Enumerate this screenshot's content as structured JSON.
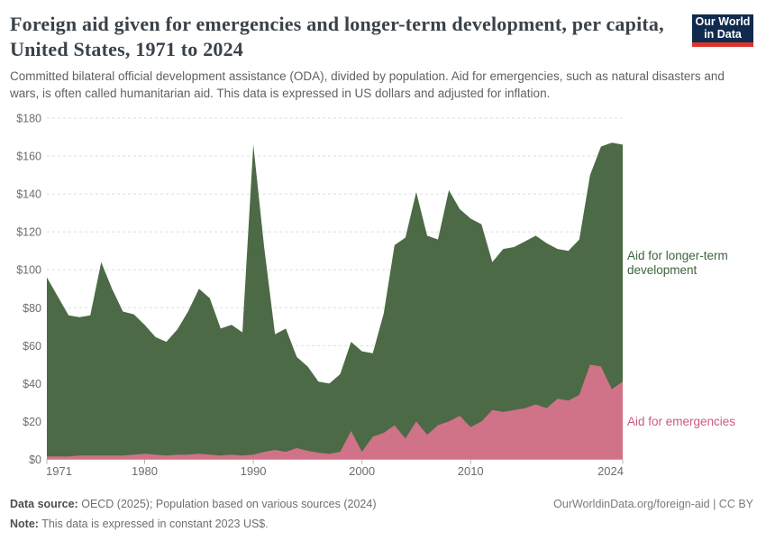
{
  "header": {
    "title": "Foreign aid given for emergencies and longer-term development, per capita, United States, 1971 to 2024",
    "subtitle": "Committed bilateral official development assistance (ODA), divided by population. Aid for emergencies, such as natural disasters and wars, is often called humanitarian aid. This data is expressed in US dollars and adjusted for inflation.",
    "logo": {
      "line1": "Our World",
      "line2": "in Data",
      "bg_color": "#102b4e",
      "accent_color": "#dc352d"
    }
  },
  "chart_data": {
    "type": "area",
    "stacked": true,
    "title": "Foreign aid given for emergencies and longer-term development, per capita, United States, 1971 to 2024",
    "xlabel": "",
    "ylabel": "",
    "grid": "horizontal-dashed",
    "legend_position": "right-edge-labels",
    "ylim": [
      0,
      180
    ],
    "yticks": [
      0,
      20,
      40,
      60,
      80,
      100,
      120,
      140,
      160,
      180
    ],
    "ytick_prefix": "$",
    "xticks": [
      1971,
      1980,
      1990,
      2000,
      2010,
      2024
    ],
    "x": [
      1971,
      1972,
      1973,
      1974,
      1975,
      1976,
      1977,
      1978,
      1979,
      1980,
      1981,
      1982,
      1983,
      1984,
      1985,
      1986,
      1987,
      1988,
      1989,
      1990,
      1991,
      1992,
      1993,
      1994,
      1995,
      1996,
      1997,
      1998,
      1999,
      2000,
      2001,
      2002,
      2003,
      2004,
      2005,
      2006,
      2007,
      2008,
      2009,
      2010,
      2011,
      2012,
      2013,
      2014,
      2015,
      2016,
      2017,
      2018,
      2019,
      2020,
      2021,
      2022,
      2023,
      2024
    ],
    "series": [
      {
        "name": "Aid for emergencies",
        "color": "#d07388",
        "label_color": "#cb5a7d",
        "values": [
          1.5,
          1.5,
          1.5,
          2,
          2,
          2,
          2,
          2,
          2.5,
          3,
          2.5,
          2,
          2.5,
          2.5,
          3,
          2.5,
          2,
          2.5,
          2,
          2.5,
          4,
          5,
          4,
          6,
          4.5,
          3.5,
          3,
          4,
          15,
          4,
          12,
          14,
          18,
          11,
          20,
          13,
          18,
          20,
          23,
          17,
          20,
          26,
          25,
          26,
          27,
          29,
          27,
          32,
          31,
          34,
          50,
          49,
          37,
          41
        ]
      },
      {
        "name": "Aid for longer-term development",
        "color": "#4c6a46",
        "label_color": "#3c643c",
        "values": [
          94.5,
          84.5,
          74.5,
          73,
          74,
          102,
          88,
          76,
          74,
          68,
          62,
          60,
          66,
          75.5,
          87,
          82.5,
          67,
          68.5,
          65,
          163.5,
          108,
          61,
          65,
          48,
          44.5,
          37.5,
          37,
          41,
          47,
          53,
          44,
          63,
          95,
          106,
          121,
          105,
          98,
          122,
          109,
          110,
          104,
          78,
          86,
          86,
          88,
          89,
          87,
          79,
          79,
          82,
          100,
          116,
          130,
          125
        ]
      }
    ],
    "axis_colors": {
      "gridline": "#dedede",
      "baseline": "#c9c9c9",
      "tick_text": "#6d6d6d"
    }
  },
  "footer": {
    "data_source_label": "Data source:",
    "data_source_text": "OECD (2025); Population based on various sources (2024)",
    "note_label": "Note:",
    "note_text": "This data is expressed in constant 2023 US$.",
    "link": "OurWorldinData.org/foreign-aid | CC BY"
  }
}
